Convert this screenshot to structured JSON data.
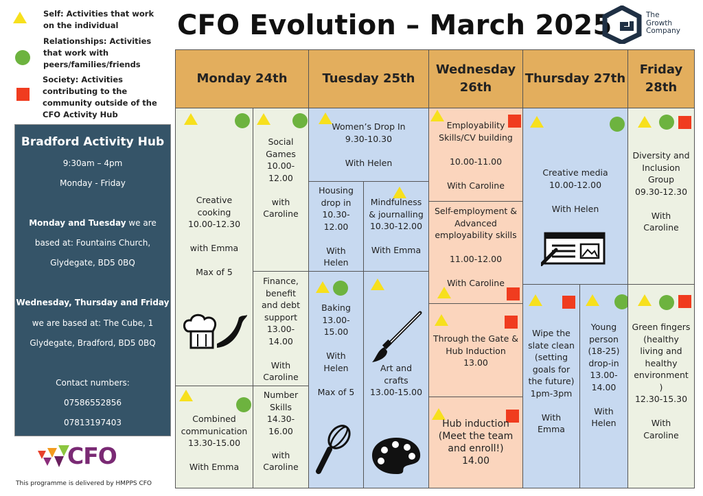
{
  "legend": {
    "self": "Self: Activities that work on the individual",
    "relationships": "Relationships: Activities that work with peers/families/friends",
    "society": "Society: Activities contributing to the community outside of the CFO Activity Hub"
  },
  "title": "CFO Evolution – March 2025",
  "logo": {
    "line1": "The",
    "line2": "Growth",
    "line3": "Company"
  },
  "hub": {
    "name": "Bradford Activity Hub",
    "hours": "9:30am – 4pm",
    "days": "Monday - Friday",
    "mt_bold": "Monday and Tuesday",
    "mt_rest": " we are",
    "mt_line2": "based at: Fountains Church,",
    "mt_line3": "Glydegate, BD5 0BQ",
    "wtf_bold": "Wednesday, Thursday and Friday",
    "wtf_line2": "we are based at: The Cube, 1",
    "wtf_line3": "Glydegate, Bradford, BD5 0BQ",
    "contact_label": "Contact numbers:",
    "phone1": "07586552856",
    "phone2": "07813197403"
  },
  "cfo_logo": "CFO",
  "footer": "This programme is delivered by HMPPS CFO",
  "days": {
    "mon": "Monday 24th",
    "tue": "Tuesday 25th",
    "wed": "Wednesday\n26th",
    "thu": "Thursday 27th",
    "fri": "Friday\n28th"
  },
  "activities": {
    "creative_cooking": "Creative\ncooking\n10.00-12.30\n\nwith Emma\n\nMax of 5",
    "social_games": "Social\nGames\n10.00-\n12.00\n\nwith\nCaroline",
    "finance": "Finance,\nbenefit\nand debt\nsupport\n13.00-\n14.00\n\nWith\nCaroline",
    "combined_comm": "Combined\ncommunication\n13.30-15.00\n\nWith Emma",
    "number_skills": "Number\nSkills\n14.30-\n16.00\n\nwith\nCaroline",
    "womens_drop": "Women’s Drop In\n9.30-10.30\n\nWith Helen",
    "housing": "Housing\ndrop in\n10.30-\n12.00\n\nWith\nHelen",
    "mindfulness": "Mindfulness\n& journalling\n10.30-12.00\n\nWith Emma",
    "baking": "Baking\n13.00-\n15.00\n\nWith\nHelen\n\nMax of 5",
    "art": "Art and\ncrafts\n13.00-15.00",
    "employability": "Employability\nSkills/CV building\n\n10.00-11.00\n\nWith Caroline",
    "self_employment": "Self-employment &\nAdvanced\nemployability skills\n\n11.00-12.00\n\nWith Caroline",
    "through_gate": "Through the Gate &\nHub Induction\n13.00",
    "hub_induction": "Hub induction\n(Meet the team\nand enroll!)\n14.00",
    "creative_media": "Creative media\n10.00-12.00\n\nWith Helen",
    "wipe_slate": "Wipe the\nslate clean\n(setting\ngoals for\nthe future)\n1pm-3pm\n\nWith\nEmma",
    "young_person": "Young\nperson\n(18-25)\ndrop-in\n13.00-\n14.00\n\nWith\nHelen",
    "diversity": "Diversity and\nInclusion\nGroup\n09.30-12.30\n\nWith\nCaroline",
    "green_fingers": "Green fingers\n(healthy\nliving and\nhealthy\nenvironment\n)\n12.30-15.30\n\nWith\nCaroline"
  },
  "colors": {
    "header": "#e3ae5d",
    "green": "#edf1e3",
    "blue": "#c7d9f0",
    "peach": "#fbd5bd",
    "panel": "#355468",
    "self": "#f7e01d",
    "relationships": "#6db33f",
    "society": "#f03c1f"
  }
}
